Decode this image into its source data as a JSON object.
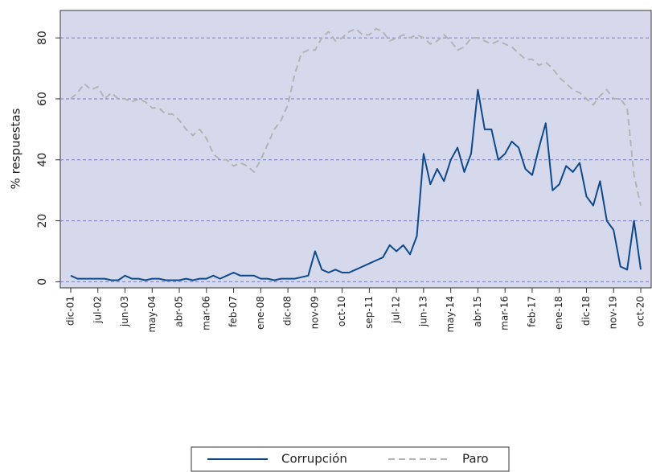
{
  "chart_data": {
    "type": "line",
    "ylabel": "% respuestas",
    "categories": [
      "dic-01",
      null,
      null,
      null,
      "jul-02",
      null,
      null,
      null,
      "jun-03",
      null,
      null,
      null,
      "may-04",
      null,
      null,
      null,
      "abr-05",
      null,
      null,
      null,
      "mar-06",
      null,
      null,
      null,
      "feb-07",
      null,
      null,
      null,
      "ene-08",
      null,
      null,
      null,
      "dic-08",
      null,
      null,
      null,
      "nov-09",
      null,
      null,
      null,
      "oct-10",
      null,
      null,
      null,
      "sep-11",
      null,
      null,
      null,
      "jul-12",
      null,
      null,
      null,
      "jun-13",
      null,
      null,
      null,
      "may-14",
      null,
      null,
      null,
      "abr-15",
      null,
      null,
      null,
      "mar-16",
      null,
      null,
      null,
      "feb-17",
      null,
      null,
      null,
      "ene-18",
      null,
      null,
      null,
      "dic-18",
      null,
      null,
      null,
      "nov-19",
      null,
      null,
      null,
      "oct-20"
    ],
    "series": [
      {
        "name": "Corrupción",
        "color": "#0d4a8c",
        "dash": "none",
        "values": [
          2,
          1,
          1,
          1,
          1,
          1,
          0.5,
          0.5,
          2,
          1,
          1,
          0.5,
          1,
          1,
          0.5,
          0.5,
          0.5,
          1,
          0.5,
          1,
          1,
          2,
          1,
          2,
          3,
          2,
          2,
          2,
          1,
          1,
          0.5,
          1,
          1,
          1,
          1.5,
          2,
          10,
          4,
          3,
          4,
          3,
          3,
          4,
          5,
          6,
          7,
          8,
          12,
          10,
          12,
          9,
          15,
          42,
          32,
          37,
          33,
          40,
          44,
          36,
          42,
          63,
          50,
          50,
          40,
          42,
          46,
          44,
          37,
          35,
          44,
          52,
          30,
          32,
          38,
          36,
          39,
          28,
          25,
          33,
          20,
          17,
          5,
          4,
          20,
          4
        ]
      },
      {
        "name": "Paro",
        "color": "#b4b4b4",
        "dash": "dashed",
        "values": [
          60,
          62,
          65,
          63,
          64,
          60,
          62,
          60,
          60,
          59,
          60,
          59,
          57,
          57,
          55,
          55,
          53,
          50,
          48,
          50,
          47,
          42,
          40,
          40,
          38,
          39,
          38,
          36,
          40,
          45,
          50,
          53,
          58,
          68,
          75,
          76,
          76,
          80,
          82,
          79,
          80,
          82,
          83,
          81,
          81,
          83,
          82,
          79,
          80,
          81,
          80,
          81,
          80,
          78,
          79,
          81,
          79,
          76,
          77,
          80,
          80,
          79,
          78,
          79,
          78,
          77,
          75,
          73,
          73,
          71,
          72,
          70,
          67,
          65,
          63,
          62,
          60,
          58,
          61,
          63,
          60,
          60,
          57,
          35,
          25
        ]
      }
    ],
    "ylim": [
      -2,
      89
    ],
    "yticks": [
      0,
      20,
      40,
      60,
      80
    ],
    "grid": true,
    "legend": "bottom"
  }
}
